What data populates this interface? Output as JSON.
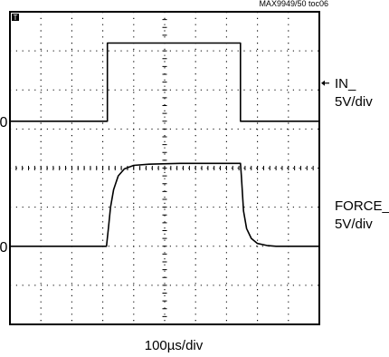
{
  "figure_id": "MAX9949/50 toc06",
  "chart_data": {
    "type": "line",
    "title": "",
    "trigger_marker": "T",
    "x_scale_label": "100µs/div",
    "x_divisions": 10,
    "y_divisions": 8,
    "grid": "dotted",
    "channels": [
      {
        "name": "IN_",
        "scale": "5V/div",
        "ground_label": "0",
        "ground_div": 1.2,
        "x_div": [
          0,
          3.15,
          3.15,
          7.45,
          7.45,
          10
        ],
        "y_div": [
          0,
          0,
          2.0,
          2.0,
          0,
          0
        ]
      },
      {
        "name": "FORCE_",
        "scale": "5V/div",
        "ground_label": "0",
        "ground_div": -2.0,
        "x_div": [
          0,
          3.12,
          3.18,
          3.25,
          3.35,
          3.5,
          3.7,
          4.0,
          4.5,
          5.5,
          7.45,
          7.48,
          7.55,
          7.65,
          7.8,
          8.0,
          8.3,
          8.6,
          10
        ],
        "y_div": [
          0,
          0,
          0.45,
          1.0,
          1.45,
          1.8,
          1.98,
          2.07,
          2.1,
          2.12,
          2.12,
          1.8,
          0.9,
          0.45,
          0.2,
          0.07,
          0.02,
          0,
          0
        ]
      }
    ]
  }
}
